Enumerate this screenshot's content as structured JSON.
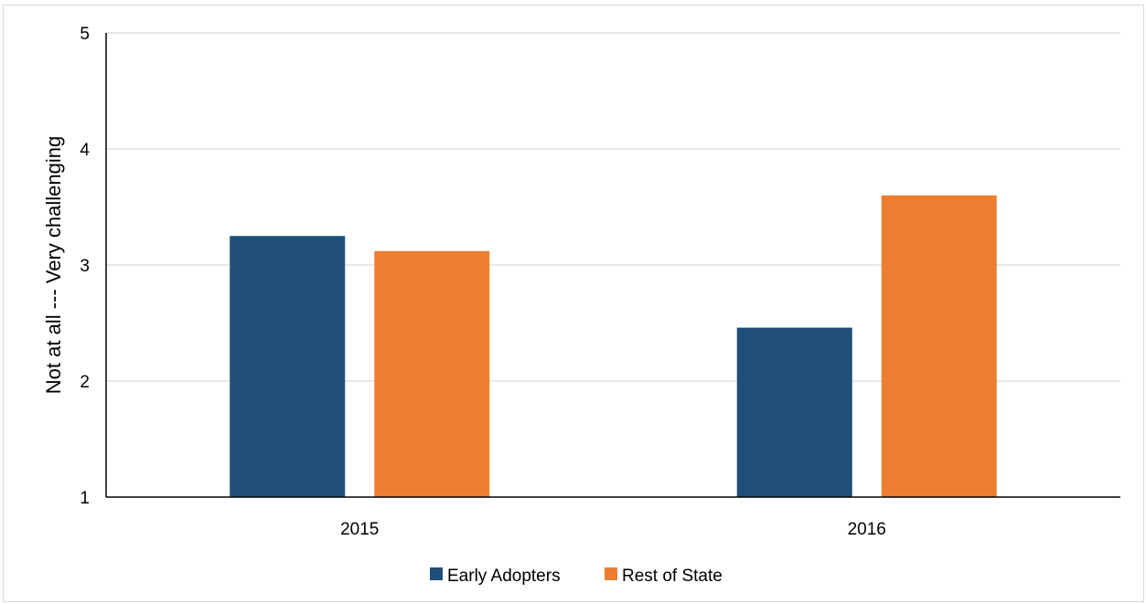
{
  "chart_data": {
    "type": "bar",
    "title": "",
    "xlabel": "",
    "ylabel": "Not at all --- Very challenging",
    "categories": [
      "2015",
      "2016"
    ],
    "series": [
      {
        "name": "Early Adopters",
        "values": [
          3.25,
          2.46
        ],
        "color": "#1f4e79"
      },
      {
        "name": "Rest of State",
        "values": [
          3.12,
          3.6
        ],
        "color": "#ed7d31"
      }
    ],
    "ylim": [
      1,
      5
    ],
    "yticks": [
      "1",
      "2",
      "3",
      "4",
      "5"
    ],
    "grid": "horizontal",
    "legend_position": "bottom"
  }
}
